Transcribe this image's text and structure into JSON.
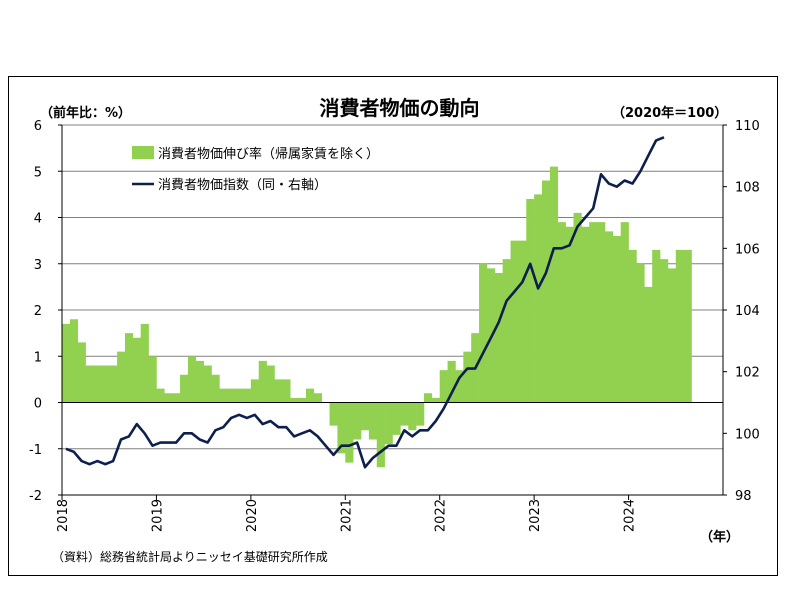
{
  "chart_data": {
    "type": "bar",
    "title": "消費者物価の動向",
    "ylabel_left": "（前年比：%）",
    "ylabel_right": "（2020年＝100）",
    "xlabel": "（年）",
    "source": "（資料）総務省統計局よりニッセイ基礎研究所作成",
    "ylim_left": [
      -2,
      6
    ],
    "yticks_left": [
      "6",
      "5",
      "4",
      "3",
      "2",
      "1",
      "0",
      "-1",
      "-2"
    ],
    "ylim_right": [
      98,
      110
    ],
    "yticks_right": [
      "110",
      "108",
      "106",
      "104",
      "102",
      "100",
      "98"
    ],
    "xticks": [
      "2018",
      "2019",
      "2020",
      "2021",
      "2022",
      "2023",
      "2024"
    ],
    "start_month": "2018-01",
    "series": [
      {
        "name": "消費者物価伸び率（帰属家賃を除く）",
        "type": "bar",
        "axis": "left",
        "color": "#92d050",
        "values": [
          1.7,
          1.8,
          1.3,
          0.8,
          0.8,
          0.8,
          0.8,
          1.1,
          1.5,
          1.4,
          1.7,
          1.0,
          0.3,
          0.2,
          0.2,
          0.6,
          1.0,
          0.9,
          0.8,
          0.6,
          0.3,
          0.3,
          0.3,
          0.3,
          0.5,
          0.9,
          0.8,
          0.5,
          0.5,
          0.1,
          0.1,
          0.3,
          0.2,
          0.0,
          -0.5,
          -1.1,
          -1.3,
          -0.8,
          -0.6,
          -0.8,
          -1.4,
          -0.9,
          -0.7,
          -0.5,
          -0.6,
          -0.5,
          0.2,
          0.1,
          0.7,
          0.9,
          0.7,
          1.1,
          1.5,
          3.0,
          2.9,
          2.8,
          3.1,
          3.5,
          3.5,
          4.4,
          4.5,
          4.8,
          5.1,
          3.9,
          3.8,
          4.1,
          3.8,
          3.9,
          3.9,
          3.7,
          3.6,
          3.9,
          3.3,
          3.0,
          2.5,
          3.3,
          3.1,
          2.9,
          3.3,
          3.3
        ]
      },
      {
        "name": "消費者物価指数（同・右軸）",
        "type": "line",
        "axis": "right",
        "color": "#0d1f4e",
        "values": [
          99.5,
          99.4,
          99.1,
          99.0,
          99.1,
          99.0,
          99.1,
          99.8,
          99.9,
          100.3,
          100.0,
          99.6,
          99.7,
          99.7,
          99.7,
          100.0,
          100.0,
          99.8,
          99.7,
          100.1,
          100.2,
          100.5,
          100.6,
          100.5,
          100.6,
          100.3,
          100.4,
          100.2,
          100.2,
          99.9,
          100.0,
          100.1,
          99.9,
          99.6,
          99.3,
          99.6,
          99.6,
          99.7,
          98.9,
          99.2,
          99.4,
          99.6,
          99.6,
          100.1,
          99.9,
          100.1,
          100.1,
          100.4,
          100.8,
          101.3,
          101.8,
          102.1,
          102.1,
          102.6,
          103.1,
          103.6,
          104.3,
          104.6,
          104.9,
          105.5,
          104.7,
          105.2,
          106.0,
          106.0,
          106.1,
          106.7,
          107.0,
          107.3,
          108.4,
          108.1,
          108.0,
          108.2,
          108.1,
          108.5,
          109.0,
          109.5,
          109.6
        ]
      }
    ],
    "legend_position": "top-left",
    "grid": true
  }
}
